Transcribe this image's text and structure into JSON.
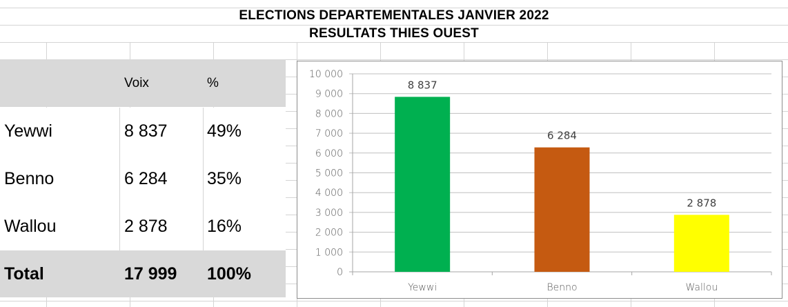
{
  "title": {
    "line1": "ELECTIONS DEPARTEMENTALES JANVIER 2022",
    "line2": "RESULTATS THIES OUEST"
  },
  "table": {
    "headers": [
      "",
      "Voix",
      "%"
    ],
    "rows": [
      {
        "name": "Yewwi",
        "voix": "8 837",
        "pct": "49%"
      },
      {
        "name": "Benno",
        "voix": "6 284",
        "pct": "35%"
      },
      {
        "name": "Wallou",
        "voix": "2 878",
        "pct": "16%"
      }
    ],
    "total": {
      "name": "Total",
      "voix": "17 999",
      "pct": "100%"
    }
  },
  "chart_data": {
    "type": "bar",
    "categories": [
      "Yewwi",
      "Benno",
      "Wallou"
    ],
    "values": [
      8837,
      6284,
      2878
    ],
    "value_labels": [
      "8 837",
      "6 284",
      "2 878"
    ],
    "colors": [
      "#00b050",
      "#c55a11",
      "#ffff00"
    ],
    "ylim": [
      0,
      10000
    ],
    "yticks": [
      0,
      1000,
      2000,
      3000,
      4000,
      5000,
      6000,
      7000,
      8000,
      9000,
      10000
    ],
    "ytick_labels": [
      "0",
      "1 000",
      "2 000",
      "3 000",
      "4 000",
      "5 000",
      "6 000",
      "7 000",
      "8 000",
      "9 000",
      "10 000"
    ],
    "grid": true,
    "legend": "none"
  }
}
